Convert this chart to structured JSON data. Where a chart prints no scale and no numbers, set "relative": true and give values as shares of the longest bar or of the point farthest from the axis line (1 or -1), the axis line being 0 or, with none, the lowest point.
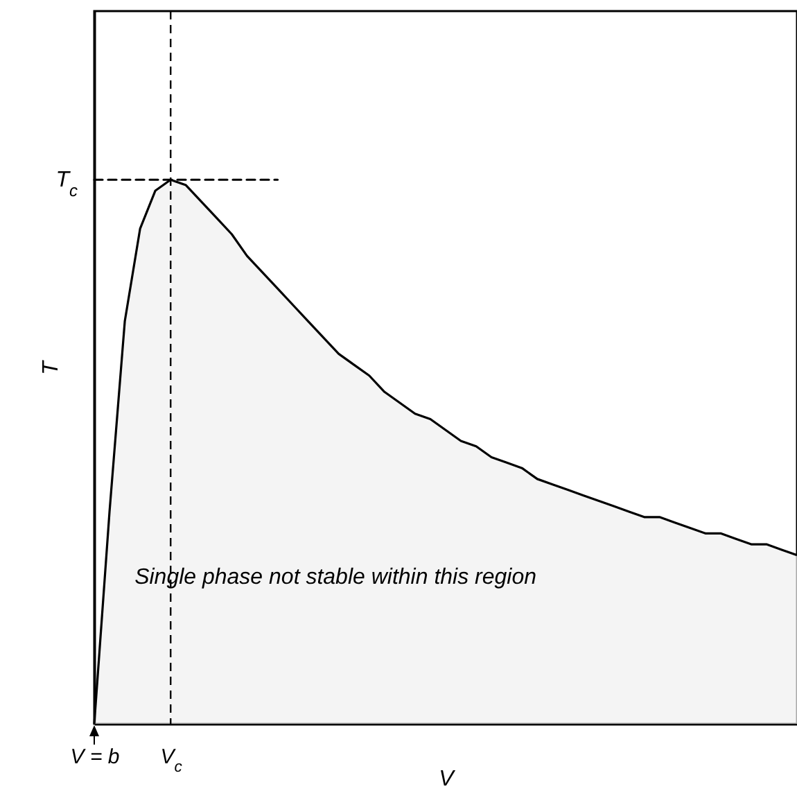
{
  "chart_data": {
    "type": "area",
    "relative": true,
    "xlabel": "V",
    "ylabel": "T",
    "categories": [
      "V = b",
      null,
      null,
      null,
      null,
      "V$_{c}$",
      null,
      null,
      null,
      null,
      null,
      null,
      null,
      null,
      null,
      null,
      null,
      null,
      null,
      null,
      null,
      null,
      null,
      null,
      null,
      null,
      null,
      null,
      null,
      null,
      null,
      null,
      null,
      null,
      null,
      null,
      null,
      null,
      null,
      null,
      null,
      null,
      null,
      null,
      null,
      null,
      null
    ],
    "series": [
      {
        "color": "#efefef",
        "values": [
          0,
          0.39,
          0.74,
          0.91,
          0.98,
          1,
          0.99,
          0.96,
          0.93,
          0.9,
          0.86,
          0.83,
          0.8,
          0.77,
          0.74,
          0.71,
          0.68,
          0.66,
          0.64,
          0.61,
          0.59,
          0.57,
          0.56,
          0.54,
          0.52,
          0.51,
          0.49,
          0.48,
          0.47,
          0.45,
          0.44,
          0.43,
          0.42,
          0.41,
          0.4,
          0.39,
          0.38,
          0.38,
          0.37,
          0.36,
          0.35,
          0.35,
          0.34,
          0.33,
          0.33,
          0.32,
          0.31
        ]
      },
      {
        "type": "line",
        "color": "#000000",
        "line_style": "dashed",
        "values": [
          1,
          1,
          1,
          1,
          1,
          1,
          1,
          1,
          1,
          1,
          1,
          1,
          1,
          null,
          null,
          null,
          null,
          null,
          null,
          null,
          null,
          null,
          null,
          null,
          null,
          null,
          null,
          null,
          null,
          null,
          null,
          null,
          null,
          null,
          null,
          null,
          null,
          null,
          null,
          null,
          null,
          null,
          null,
          null,
          null,
          null,
          null
        ]
      }
    ],
    "ref_lines": [
      {
        "axis": "x",
        "value": "V$_{c}$",
        "color": "#000000",
        "line_style": "dashed"
      }
    ],
    "grid": false,
    "annotations": [
      "T$_{c}$",
      "Single phase not stable within this region"
    ]
  }
}
